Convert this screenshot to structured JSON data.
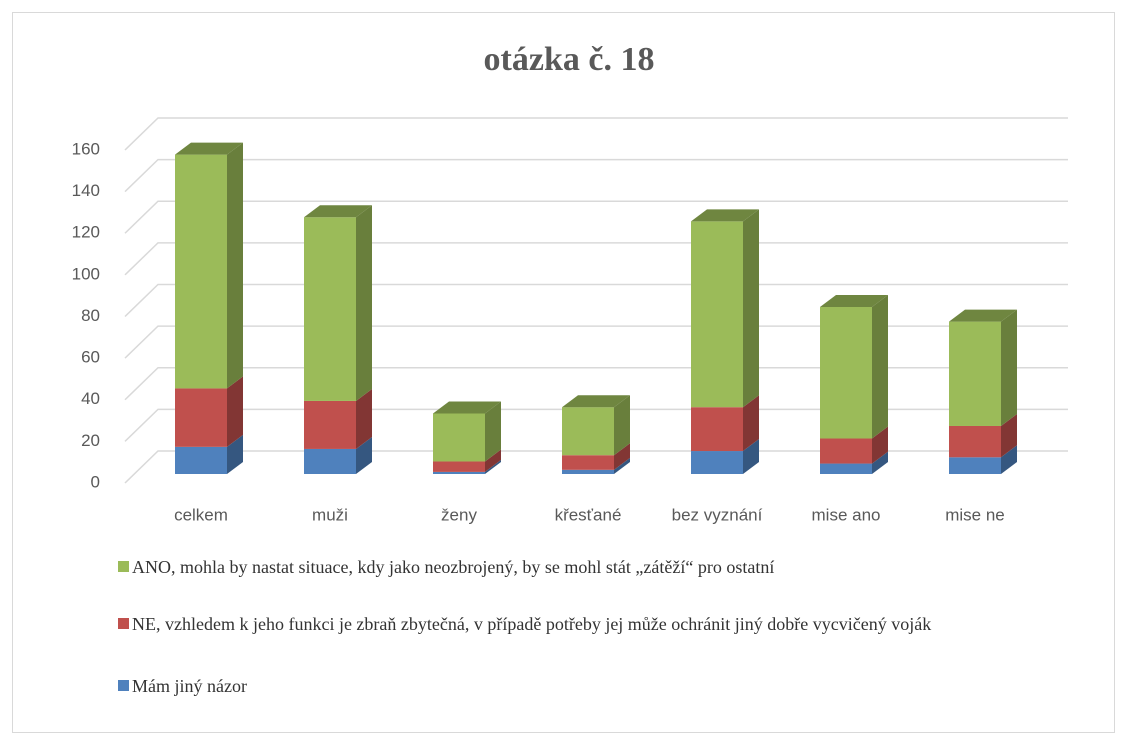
{
  "chart_data": {
    "type": "bar3d_stacked",
    "title": "otázka č. 18",
    "categories": [
      "celkem",
      "muži",
      "ženy",
      "křesťané",
      "bez vyznání",
      "mise ano",
      "mise ne"
    ],
    "series": [
      {
        "name": "ANO, mohla by nastat situace, kdy jako neozbrojený, by se mohl stát „zátěží“ pro ostatní",
        "color": "#9bbb59",
        "values": [
          112,
          88,
          23,
          23,
          89,
          63,
          50
        ]
      },
      {
        "name": "NE, vzhledem k jeho funkci je zbraň zbytečná, v případě potřeby jej může ochránit jiný dobře vycvičený voják",
        "color": "#c0504d",
        "values": [
          28,
          23,
          5,
          7,
          21,
          12,
          15
        ]
      },
      {
        "name": "Mám jiný názor",
        "color": "#4f81bd",
        "values": [
          13,
          12,
          1,
          2,
          11,
          5,
          8
        ]
      }
    ],
    "ylim": [
      0,
      160
    ],
    "yticks": [
      0,
      20,
      40,
      60,
      80,
      100,
      120,
      140,
      160
    ],
    "grid": true
  }
}
